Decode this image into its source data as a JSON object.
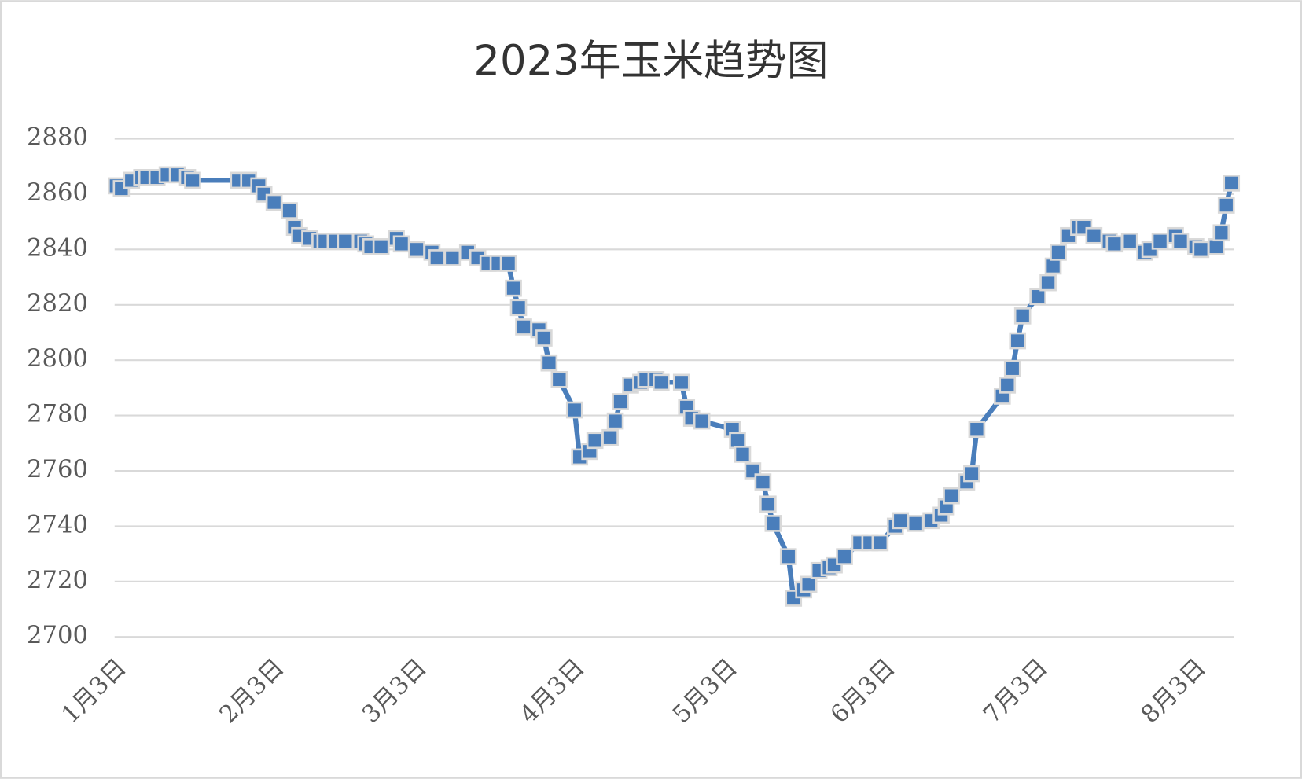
{
  "chart_data": {
    "type": "line",
    "title": "2023年玉米趋势图",
    "x": [
      0,
      1,
      3,
      5,
      6,
      8,
      10,
      12,
      14,
      15,
      24,
      26,
      28,
      29,
      31,
      34,
      35,
      36,
      38,
      40,
      41,
      43,
      45,
      48,
      49,
      50,
      52,
      55,
      56,
      59,
      62,
      63,
      66,
      69,
      71,
      73,
      75,
      77,
      78,
      79,
      80,
      83,
      84,
      85,
      87,
      90,
      91,
      93,
      94,
      97,
      98,
      99,
      101,
      103,
      104,
      106,
      107,
      111,
      112,
      113,
      115,
      121,
      122,
      123,
      125,
      127,
      128,
      129,
      132,
      133,
      135,
      136,
      138,
      140,
      141,
      143,
      146,
      148,
      150,
      153,
      154,
      157,
      160,
      162,
      163,
      164,
      167,
      168,
      169,
      174,
      175,
      176,
      177,
      178,
      181,
      183,
      184,
      185,
      187,
      189,
      190,
      192,
      195,
      196,
      199,
      202,
      203,
      205,
      208,
      209,
      212,
      213,
      216,
      217,
      218,
      219
    ],
    "values": [
      2863,
      2862,
      2865,
      2866,
      2866,
      2866,
      2867,
      2867,
      2866,
      2865,
      2865,
      2865,
      2863,
      2860,
      2857,
      2854,
      2848,
      2845,
      2844,
      2843,
      2843,
      2843,
      2843,
      2843,
      2842,
      2841,
      2841,
      2844,
      2842,
      2840,
      2839,
      2837,
      2837,
      2839,
      2837,
      2835,
      2835,
      2835,
      2826,
      2819,
      2812,
      2811,
      2808,
      2799,
      2793,
      2782,
      2765,
      2767,
      2771,
      2772,
      2778,
      2785,
      2791,
      2792,
      2793,
      2793,
      2792,
      2792,
      2783,
      2779,
      2778,
      2775,
      2771,
      2766,
      2760,
      2756,
      2748,
      2741,
      2729,
      2714,
      2717,
      2719,
      2724,
      2725,
      2726,
      2729,
      2734,
      2734,
      2734,
      2740,
      2742,
      2741,
      2742,
      2744,
      2747,
      2751,
      2756,
      2759,
      2775,
      2787,
      2791,
      2797,
      2807,
      2816,
      2823,
      2828,
      2834,
      2839,
      2845,
      2848,
      2848,
      2845,
      2843,
      2842,
      2843,
      2839,
      2840,
      2843,
      2845,
      2843,
      2841,
      2840,
      2841,
      2846,
      2856,
      2864
    ],
    "color": "#4a7ebb",
    "xlim": [
      0,
      219
    ],
    "xticks": [
      {
        "value": 0,
        "label": "1月3日"
      },
      {
        "value": 31,
        "label": "2月3日"
      },
      {
        "value": 59,
        "label": "3月3日"
      },
      {
        "value": 90,
        "label": "4月3日"
      },
      {
        "value": 120,
        "label": "5月3日"
      },
      {
        "value": 151,
        "label": "6月3日"
      },
      {
        "value": 181,
        "label": "7月3日"
      },
      {
        "value": 212,
        "label": "8月3日"
      }
    ],
    "ylim": [
      2700,
      2880
    ],
    "yticks": [
      2700,
      2720,
      2740,
      2760,
      2780,
      2800,
      2820,
      2840,
      2860,
      2880
    ],
    "grid": true
  }
}
